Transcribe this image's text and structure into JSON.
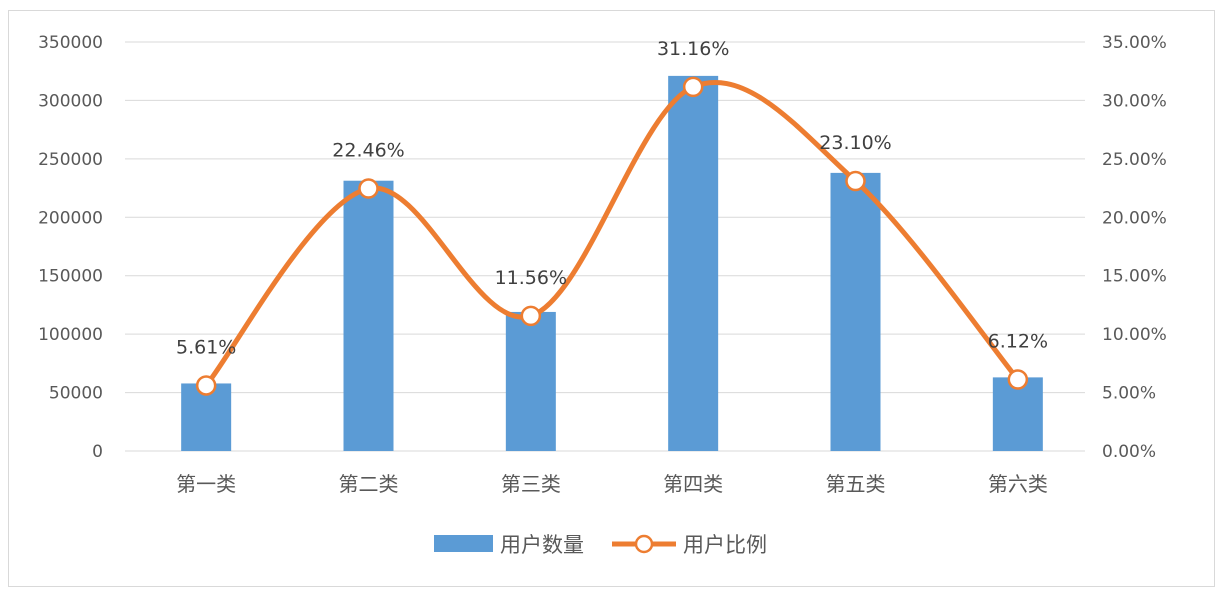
{
  "chart_data": {
    "type": "bar+line",
    "categories": [
      "第一类",
      "第二类",
      "第三类",
      "第四类",
      "第五类",
      "第六类"
    ],
    "series": [
      {
        "name": "用户数量",
        "type": "bar",
        "axis": "left",
        "color": "#5B9BD5",
        "values": [
          57800,
          231300,
          119000,
          321000,
          238000,
          63000
        ]
      },
      {
        "name": "用户比例",
        "type": "line",
        "axis": "right",
        "smooth": true,
        "marker": "circle-hollow",
        "color": "#ED7D31",
        "values": [
          5.61,
          22.46,
          11.56,
          31.16,
          23.1,
          6.12
        ],
        "labels": [
          "5.61%",
          "22.46%",
          "11.56%",
          "31.16%",
          "23.10%",
          "6.12%"
        ]
      }
    ],
    "y_left": {
      "range": [
        0,
        350000
      ],
      "ticks": [
        "0",
        "50000",
        "100000",
        "150000",
        "200000",
        "250000",
        "300000",
        "350000"
      ]
    },
    "y_right": {
      "range": [
        0,
        35
      ],
      "ticks": [
        "0.00%",
        "5.00%",
        "10.00%",
        "15.00%",
        "20.00%",
        "25.00%",
        "30.00%",
        "35.00%"
      ]
    },
    "grid": true,
    "legend": "bottom"
  }
}
